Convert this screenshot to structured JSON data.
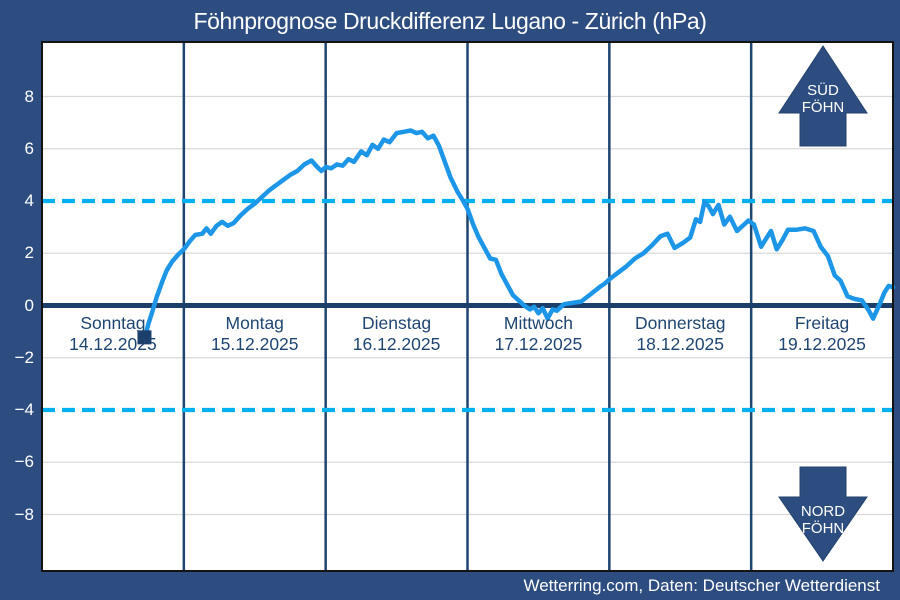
{
  "title": "Föhnprognose Druckdifferenz Lugano - Zürich (hPa)",
  "footer": "Wetterring.com, Daten: Deutscher Wetterdienst",
  "arrows": {
    "sued": {
      "line1": "SÜD",
      "line2": "FÖHN"
    },
    "nord": {
      "line1": "NORD",
      "line2": "FÖHN"
    }
  },
  "colors": {
    "frame_navy": "#2d4d80",
    "dark_navy": "#1f4571",
    "zero_line": "#1c3e6b",
    "line_blue": "#1d96e8",
    "threshold_cyan": "#00b0f0",
    "gridline_gray": "#d9d9d9",
    "plot_border": "#141414",
    "plot_bg": "#ffffff"
  },
  "chart_data": {
    "type": "line",
    "title": "Föhnprognose Druckdifferenz Lugano - Zürich (hPa)",
    "xlabel": "",
    "ylabel": "hPa",
    "ylim": [
      -10,
      10
    ],
    "yticks": [
      8,
      6,
      4,
      2,
      0,
      -2,
      -4,
      -6,
      -8
    ],
    "threshold_lines": [
      4,
      -4
    ],
    "grid": "horizontal-gray, vertical day separators",
    "legend": "none",
    "days": [
      {
        "name": "Sonntag",
        "date": "14.12.2025"
      },
      {
        "name": "Montag",
        "date": "15.12.2025"
      },
      {
        "name": "Dienstag",
        "date": "16.12.2025"
      },
      {
        "name": "Mittwoch",
        "date": "17.12.2025"
      },
      {
        "name": "Donnerstag",
        "date": "18.12.2025"
      },
      {
        "name": "Freitag",
        "date": "19.12.2025"
      }
    ],
    "x_unit": "days from start of Sonntag 14.12.2025",
    "x_days": [
      0.726,
      0.75,
      0.78,
      0.81,
      0.85,
      0.88,
      0.92,
      0.96,
      1.0,
      1.04,
      1.08,
      1.13,
      1.16,
      1.19,
      1.23,
      1.27,
      1.31,
      1.35,
      1.4,
      1.45,
      1.5,
      1.55,
      1.6,
      1.65,
      1.7,
      1.75,
      1.8,
      1.85,
      1.9,
      1.94,
      1.97,
      2.0,
      2.04,
      2.08,
      2.12,
      2.16,
      2.2,
      2.25,
      2.29,
      2.33,
      2.37,
      2.41,
      2.45,
      2.5,
      2.55,
      2.6,
      2.64,
      2.68,
      2.72,
      2.76,
      2.8,
      2.84,
      2.88,
      2.93,
      2.97,
      3.0,
      3.04,
      3.08,
      3.12,
      3.16,
      3.2,
      3.24,
      3.28,
      3.32,
      3.36,
      3.4,
      3.44,
      3.47,
      3.5,
      3.53,
      3.565,
      3.6,
      3.63,
      3.68,
      3.74,
      3.8,
      3.86,
      3.93,
      3.97,
      4.0,
      4.06,
      4.12,
      4.18,
      4.24,
      4.3,
      4.36,
      4.41,
      4.46,
      4.52,
      4.57,
      4.61,
      4.64,
      4.67,
      4.7,
      4.73,
      4.77,
      4.81,
      4.85,
      4.9,
      4.95,
      4.98,
      5.02,
      5.07,
      5.11,
      5.14,
      5.18,
      5.22,
      5.26,
      5.32,
      5.38,
      5.44,
      5.49,
      5.54,
      5.59,
      5.63,
      5.68,
      5.73,
      5.78,
      5.83,
      5.86,
      5.91,
      5.94,
      5.97,
      6.0
    ],
    "values": [
      -1.2,
      -0.7,
      -0.2,
      0.35,
      0.95,
      1.35,
      1.7,
      1.95,
      2.15,
      2.45,
      2.7,
      2.75,
      2.95,
      2.75,
      3.05,
      3.2,
      3.05,
      3.15,
      3.45,
      3.7,
      3.9,
      4.15,
      4.4,
      4.6,
      4.8,
      5.0,
      5.15,
      5.4,
      5.55,
      5.3,
      5.15,
      5.3,
      5.25,
      5.4,
      5.35,
      5.6,
      5.5,
      5.9,
      5.75,
      6.15,
      6.0,
      6.35,
      6.25,
      6.6,
      6.65,
      6.7,
      6.6,
      6.65,
      6.4,
      6.5,
      6.1,
      5.5,
      4.9,
      4.35,
      4.0,
      3.7,
      3.1,
      2.6,
      2.2,
      1.8,
      1.75,
      1.2,
      0.8,
      0.4,
      0.2,
      0.0,
      -0.15,
      -0.05,
      -0.3,
      -0.1,
      -0.5,
      -0.15,
      -0.2,
      0.05,
      0.1,
      0.15,
      0.4,
      0.7,
      0.85,
      1.0,
      1.25,
      1.5,
      1.8,
      2.0,
      2.3,
      2.65,
      2.75,
      2.2,
      2.4,
      2.6,
      3.3,
      3.2,
      3.95,
      3.8,
      3.5,
      3.85,
      3.1,
      3.4,
      2.85,
      3.1,
      3.25,
      3.1,
      2.25,
      2.6,
      2.85,
      2.15,
      2.5,
      2.9,
      2.9,
      2.95,
      2.85,
      2.25,
      1.9,
      1.15,
      0.95,
      0.35,
      0.25,
      0.2,
      -0.2,
      -0.5,
      0.1,
      0.5,
      0.75,
      0.7
    ],
    "start_marker": {
      "shape": "square",
      "at_first_point": true
    }
  }
}
